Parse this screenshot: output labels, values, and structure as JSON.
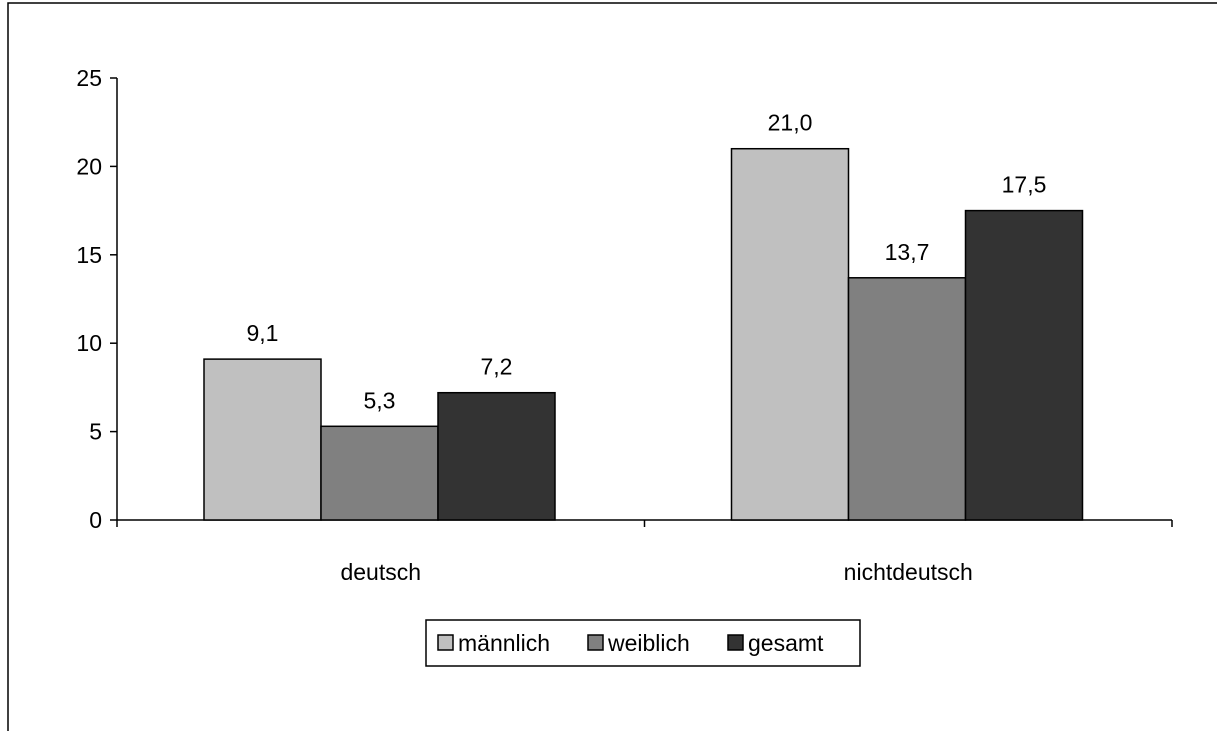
{
  "chart_data": {
    "type": "bar",
    "title": "",
    "xlabel": "",
    "ylabel": "",
    "categories": [
      "deutsch",
      "nichtdeutsch"
    ],
    "series": [
      {
        "name": "männlich",
        "values": [
          9.1,
          21.0
        ],
        "labels": [
          "9,1",
          "21,0"
        ],
        "color": "#c0c0c0"
      },
      {
        "name": "weiblich",
        "values": [
          5.3,
          13.7
        ],
        "labels": [
          "5,3",
          "13,7"
        ],
        "color": "#808080"
      },
      {
        "name": "gesamt",
        "values": [
          7.2,
          17.5
        ],
        "labels": [
          "7,2",
          "17,5"
        ],
        "color": "#333333"
      }
    ],
    "ylim": [
      0,
      25
    ],
    "yticks": [
      0,
      5,
      10,
      15,
      20,
      25
    ],
    "grid": false,
    "legend_position": "bottom"
  }
}
